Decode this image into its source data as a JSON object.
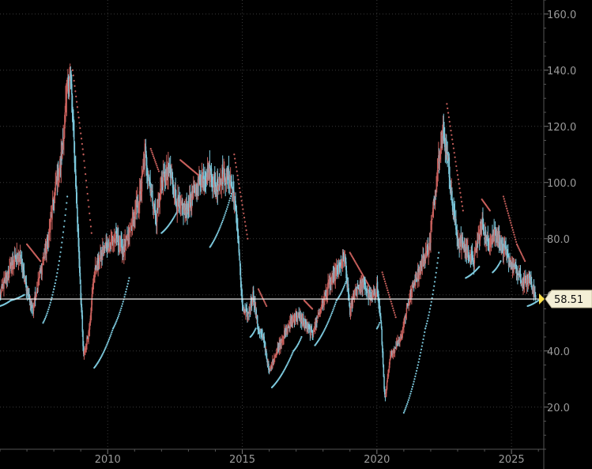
{
  "chart_data": {
    "type": "candlestick",
    "x_ticks": [
      "2010",
      "2015",
      "2020",
      "2025"
    ],
    "y_ticks": [
      "20.0",
      "40.0",
      "60.0",
      "80.0",
      "100.0",
      "120.0",
      "140.0",
      "160.0"
    ],
    "xlim": [
      2006.0,
      2026.2
    ],
    "ylim": [
      5,
      165
    ],
    "grid": true,
    "last_value": "58.51",
    "colors": {
      "background": "#000000",
      "grid": "#3a3a3a",
      "up": "#c9605c",
      "down": "#7cc8dc",
      "sar_bear": "#c9605c",
      "sar_bull": "#7cc8dc",
      "last_line": "#ffffff",
      "label_bg": "#f4efd6",
      "marker": "#ffe14a"
    },
    "price_path": [
      [
        2006.0,
        60
      ],
      [
        2006.3,
        68
      ],
      [
        2006.7,
        75
      ],
      [
        2007.0,
        62
      ],
      [
        2007.2,
        55
      ],
      [
        2007.5,
        68
      ],
      [
        2007.8,
        80
      ],
      [
        2008.0,
        95
      ],
      [
        2008.3,
        110
      ],
      [
        2008.5,
        133
      ],
      [
        2008.6,
        140
      ],
      [
        2008.7,
        125
      ],
      [
        2008.85,
        92
      ],
      [
        2009.0,
        60
      ],
      [
        2009.1,
        38
      ],
      [
        2009.3,
        47
      ],
      [
        2009.5,
        68
      ],
      [
        2009.8,
        75
      ],
      [
        2010.0,
        78
      ],
      [
        2010.3,
        80
      ],
      [
        2010.6,
        76
      ],
      [
        2010.9,
        85
      ],
      [
        2011.2,
        95
      ],
      [
        2011.4,
        110
      ],
      [
        2011.6,
        98
      ],
      [
        2011.8,
        87
      ],
      [
        2012.0,
        100
      ],
      [
        2012.3,
        104
      ],
      [
        2012.6,
        92
      ],
      [
        2012.9,
        90
      ],
      [
        2013.2,
        96
      ],
      [
        2013.5,
        102
      ],
      [
        2013.8,
        104
      ],
      [
        2014.0,
        98
      ],
      [
        2014.2,
        102
      ],
      [
        2014.5,
        102
      ],
      [
        2014.7,
        95
      ],
      [
        2014.85,
        80
      ],
      [
        2015.0,
        55
      ],
      [
        2015.2,
        52
      ],
      [
        2015.4,
        60
      ],
      [
        2015.6,
        48
      ],
      [
        2015.8,
        44
      ],
      [
        2016.0,
        32
      ],
      [
        2016.2,
        38
      ],
      [
        2016.5,
        45
      ],
      [
        2016.8,
        50
      ],
      [
        2017.0,
        53
      ],
      [
        2017.3,
        50
      ],
      [
        2017.6,
        46
      ],
      [
        2017.9,
        55
      ],
      [
        2018.2,
        63
      ],
      [
        2018.5,
        68
      ],
      [
        2018.8,
        73
      ],
      [
        2019.0,
        54
      ],
      [
        2019.2,
        62
      ],
      [
        2019.5,
        64
      ],
      [
        2019.8,
        58
      ],
      [
        2020.0,
        63
      ],
      [
        2020.15,
        50
      ],
      [
        2020.3,
        22
      ],
      [
        2020.5,
        38
      ],
      [
        2020.7,
        42
      ],
      [
        2020.9,
        45
      ],
      [
        2021.1,
        55
      ],
      [
        2021.4,
        65
      ],
      [
        2021.7,
        72
      ],
      [
        2021.95,
        78
      ],
      [
        2022.2,
        100
      ],
      [
        2022.4,
        118
      ],
      [
        2022.6,
        112
      ],
      [
        2022.8,
        92
      ],
      [
        2023.0,
        80
      ],
      [
        2023.3,
        76
      ],
      [
        2023.6,
        72
      ],
      [
        2023.9,
        86
      ],
      [
        2024.1,
        78
      ],
      [
        2024.4,
        83
      ],
      [
        2024.7,
        76
      ],
      [
        2024.9,
        72
      ],
      [
        2025.2,
        68
      ],
      [
        2025.4,
        64
      ],
      [
        2025.7,
        66
      ],
      [
        2025.9,
        58.51
      ]
    ],
    "sar_segments": [
      {
        "trend": "bull",
        "points": [
          [
            2006.0,
            56
          ],
          [
            2006.4,
            58
          ],
          [
            2006.9,
            60
          ]
        ]
      },
      {
        "trend": "bear",
        "points": [
          [
            2007.0,
            78
          ],
          [
            2007.5,
            72
          ]
        ]
      },
      {
        "trend": "bull",
        "points": [
          [
            2007.6,
            50
          ],
          [
            2008.0,
            62
          ],
          [
            2008.5,
            95
          ]
        ]
      },
      {
        "trend": "bear",
        "points": [
          [
            2008.7,
            140
          ],
          [
            2009.1,
            110
          ],
          [
            2009.4,
            82
          ]
        ]
      },
      {
        "trend": "bull",
        "points": [
          [
            2009.5,
            34
          ],
          [
            2010.2,
            48
          ],
          [
            2010.8,
            66
          ]
        ]
      },
      {
        "trend": "bear",
        "points": [
          [
            2011.6,
            112
          ],
          [
            2011.9,
            104
          ]
        ]
      },
      {
        "trend": "bull",
        "points": [
          [
            2012.0,
            82
          ],
          [
            2012.6,
            90
          ]
        ]
      },
      {
        "trend": "bear",
        "points": [
          [
            2012.7,
            108
          ],
          [
            2013.7,
            100
          ]
        ]
      },
      {
        "trend": "bull",
        "points": [
          [
            2013.8,
            77
          ],
          [
            2014.6,
            96
          ]
        ]
      },
      {
        "trend": "bear",
        "points": [
          [
            2014.7,
            110
          ],
          [
            2015.2,
            80
          ]
        ]
      },
      {
        "trend": "bull",
        "points": [
          [
            2015.3,
            45
          ],
          [
            2015.5,
            48
          ]
        ]
      },
      {
        "trend": "bear",
        "points": [
          [
            2015.6,
            62
          ],
          [
            2015.9,
            56
          ]
        ]
      },
      {
        "trend": "bull",
        "points": [
          [
            2016.1,
            27
          ],
          [
            2016.9,
            40
          ],
          [
            2017.2,
            45
          ]
        ]
      },
      {
        "trend": "bear",
        "points": [
          [
            2017.3,
            58
          ],
          [
            2017.6,
            55
          ]
        ]
      },
      {
        "trend": "bull",
        "points": [
          [
            2017.7,
            42
          ],
          [
            2018.5,
            58
          ],
          [
            2018.9,
            66
          ]
        ]
      },
      {
        "trend": "bear",
        "points": [
          [
            2019.0,
            75
          ],
          [
            2019.9,
            60
          ]
        ]
      },
      {
        "trend": "bull",
        "points": [
          [
            2020.0,
            48
          ],
          [
            2020.1,
            50
          ]
        ]
      },
      {
        "trend": "bear",
        "points": [
          [
            2020.2,
            68
          ],
          [
            2020.7,
            52
          ]
        ]
      },
      {
        "trend": "bull",
        "points": [
          [
            2021.0,
            18
          ],
          [
            2021.8,
            48
          ],
          [
            2022.3,
            75
          ]
        ]
      },
      {
        "trend": "bear",
        "points": [
          [
            2022.6,
            128
          ],
          [
            2023.2,
            90
          ]
        ]
      },
      {
        "trend": "bull",
        "points": [
          [
            2023.3,
            66
          ],
          [
            2023.8,
            70
          ]
        ]
      },
      {
        "trend": "bear",
        "points": [
          [
            2023.9,
            94
          ],
          [
            2024.2,
            90
          ]
        ]
      },
      {
        "trend": "bull",
        "points": [
          [
            2024.3,
            68
          ],
          [
            2024.6,
            72
          ]
        ]
      },
      {
        "trend": "bear",
        "points": [
          [
            2024.7,
            95
          ],
          [
            2025.2,
            78
          ],
          [
            2025.5,
            72
          ]
        ]
      },
      {
        "trend": "bull",
        "points": [
          [
            2025.6,
            56
          ],
          [
            2026.0,
            58
          ]
        ]
      }
    ]
  }
}
